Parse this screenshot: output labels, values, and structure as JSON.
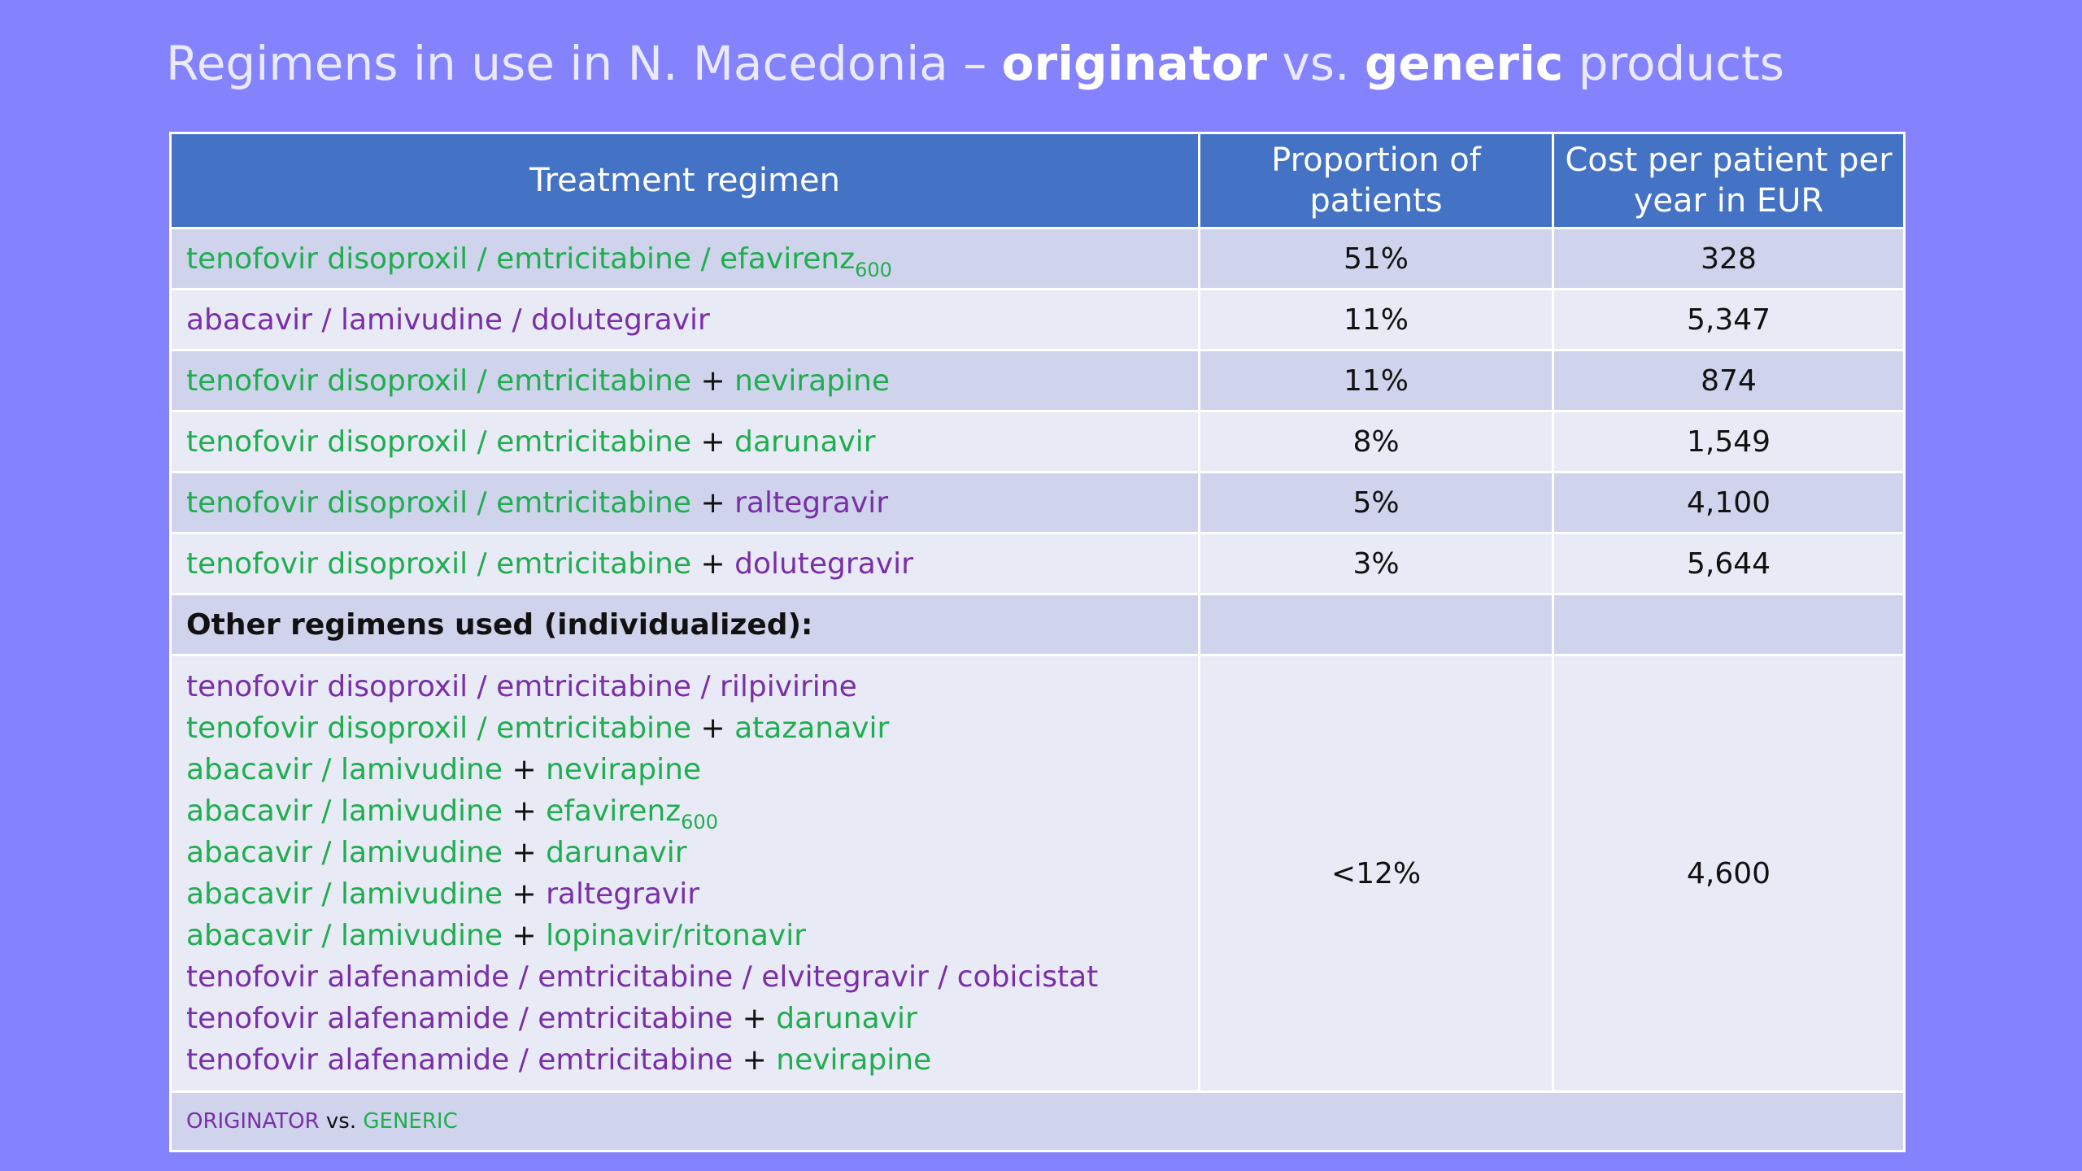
{
  "title": {
    "part1": "Regimens in use in N. Macedonia – ",
    "originator": "originator",
    "vs": " vs. ",
    "generic": "generic",
    "part2": " products"
  },
  "headers": {
    "regimen": "Treatment regimen",
    "proportion": "Proportion of patients",
    "cost": "Cost per patient per year in EUR"
  },
  "rows": [
    {
      "drug1": "tenofovir disoproxil / emtricitabine / efavirenz",
      "sub": "600",
      "proportion": "51%",
      "cost": "328"
    },
    {
      "drug1": "abacavir / lamivudine / dolutegravir",
      "proportion": "11%",
      "cost": "5,347"
    },
    {
      "drug1": "tenofovir disoproxil / emtricitabine",
      "plus": " + ",
      "drug2": "nevirapine",
      "proportion": "11%",
      "cost": "874"
    },
    {
      "drug1": "tenofovir disoproxil / emtricitabine",
      "plus": " + ",
      "drug2": "darunavir",
      "proportion": "8%",
      "cost": "1,549"
    },
    {
      "drug1": "tenofovir disoproxil / emtricitabine",
      "plus": " + ",
      "drug2": "raltegravir",
      "proportion": "5%",
      "cost": "4,100"
    },
    {
      "drug1": "tenofovir disoproxil / emtricitabine",
      "plus": " + ",
      "drug2": "dolutegravir",
      "proportion": "3%",
      "cost": "5,644"
    }
  ],
  "other_header": "Other regimens used (individualized):",
  "other": {
    "proportion": "<12%",
    "cost": "4,600",
    "lines": [
      {
        "a": "tenofovir disoproxil / emtricitabine / rilpivirine"
      },
      {
        "a": "tenofovir disoproxil / emtricitabine",
        "plus": " + ",
        "b": "atazanavir"
      },
      {
        "a": "abacavir / lamivudine",
        "plus": " + ",
        "b": "nevirapine"
      },
      {
        "a": "abacavir / lamivudine",
        "plus": " + ",
        "b": "efavirenz",
        "sub": "600"
      },
      {
        "a": "abacavir / lamivudine",
        "plus": " + ",
        "b": "darunavir"
      },
      {
        "a": "abacavir / lamivudine",
        "plus": " + ",
        "b": "raltegravir"
      },
      {
        "a": "abacavir / lamivudine",
        "plus": " + ",
        "b": "lopinavir/ritonavir"
      },
      {
        "a": "tenofovir alafenamide / emtricitabine / elvitegravir / cobicistat"
      },
      {
        "a": "tenofovir alafenamide / emtricitabine",
        "plus": " + ",
        "b": "darunavir"
      },
      {
        "a": "tenofovir alafenamide / emtricitabine",
        "plus": " + ",
        "b": "nevirapine"
      }
    ]
  },
  "legend": {
    "originator": "ORIGINATOR",
    "vs": " vs. ",
    "generic": "GENERIC"
  },
  "colors": {
    "generic": "#1fae4f",
    "originator": "#7a2ea8",
    "header": "#4472c4",
    "background": "#8482fc"
  }
}
